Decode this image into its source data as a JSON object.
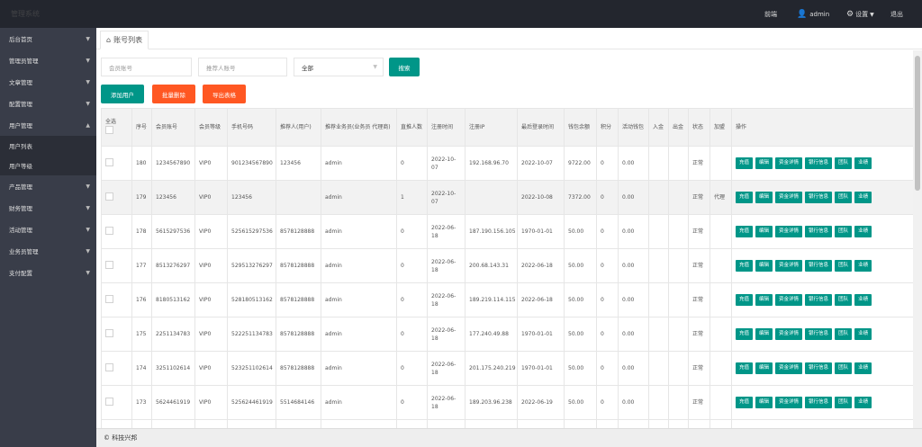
{
  "header": {
    "brand": "管理系统",
    "nav_home": "前端",
    "user": "admin",
    "settings": "设置",
    "logout": "退出"
  },
  "sidebar": {
    "items": [
      {
        "label": "后台首页"
      },
      {
        "label": "管理员管理"
      },
      {
        "label": "文章管理"
      },
      {
        "label": "配置管理"
      },
      {
        "label": "用户管理",
        "expanded": true,
        "children": [
          "用户列表",
          "用户等级"
        ]
      },
      {
        "label": "产品管理"
      },
      {
        "label": "财务管理"
      },
      {
        "label": "活动管理"
      },
      {
        "label": "业务员管理"
      },
      {
        "label": "支付配置"
      }
    ]
  },
  "tab": {
    "icon": "home-icon",
    "label": "账号列表"
  },
  "search": {
    "member_placeholder": "会员账号",
    "referrer_placeholder": "推荐人账号",
    "select_value": "全部",
    "search_label": "搜索"
  },
  "actions": {
    "add": "添加用户",
    "batch_delete": "批量删除",
    "export": "导出表格"
  },
  "table": {
    "headers": [
      "全选",
      "序号",
      "会员账号",
      "会员等级",
      "手机号码",
      "推荐人(用户)",
      "推荐业务员(业务员 代理商)",
      "直推人数",
      "注册时间",
      "注册IP",
      "最后登录时间",
      "钱包余额",
      "积分",
      "活动钱包",
      "入金",
      "出金",
      "状态",
      "加盟",
      "操作"
    ],
    "ops": [
      "充值",
      "编辑",
      "资金详情",
      "银行信息",
      "团队",
      "业绩"
    ],
    "rows": [
      [
        "180",
        "1234567890",
        "VIP0",
        "901234567890",
        "123456",
        "admin",
        "0",
        "2022-10-07",
        "192.168.96.70",
        "2022-10-07",
        "9722.00",
        "0",
        "0.00",
        "",
        "",
        "正常",
        ""
      ],
      [
        "179",
        "123456",
        "VIP0",
        "123456",
        "",
        "admin",
        "1",
        "2022-10-07",
        "",
        "2022-10-08",
        "7372.00",
        "0",
        "0.00",
        "",
        "",
        "正常",
        "代理"
      ],
      [
        "178",
        "5615297536",
        "VIP0",
        "525615297536",
        "8578128888",
        "admin",
        "0",
        "2022-06-18",
        "187.190.156.105",
        "1970-01-01",
        "50.00",
        "0",
        "0.00",
        "",
        "",
        "正常",
        ""
      ],
      [
        "177",
        "8513276297",
        "VIP0",
        "529513276297",
        "8578128888",
        "admin",
        "0",
        "2022-06-18",
        "200.68.143.31",
        "2022-06-18",
        "50.00",
        "0",
        "0.00",
        "",
        "",
        "正常",
        ""
      ],
      [
        "176",
        "8180513162",
        "VIP0",
        "528180513162",
        "8578128888",
        "admin",
        "0",
        "2022-06-18",
        "189.219.114.115",
        "2022-06-18",
        "50.00",
        "0",
        "0.00",
        "",
        "",
        "正常",
        ""
      ],
      [
        "175",
        "2251134783",
        "VIP0",
        "522251134783",
        "8578128888",
        "admin",
        "0",
        "2022-06-18",
        "177.240.49.88",
        "1970-01-01",
        "50.00",
        "0",
        "0.00",
        "",
        "",
        "正常",
        ""
      ],
      [
        "174",
        "3251102614",
        "VIP0",
        "523251102614",
        "8578128888",
        "admin",
        "0",
        "2022-06-18",
        "201.175.240.219",
        "1970-01-01",
        "50.00",
        "0",
        "0.00",
        "",
        "",
        "正常",
        ""
      ],
      [
        "173",
        "5624461919",
        "VIP0",
        "525624461919",
        "5514684146",
        "admin",
        "0",
        "2022-06-18",
        "189.203.96.238",
        "2022-06-19",
        "50.00",
        "0",
        "0.00",
        "",
        "",
        "正常",
        ""
      ],
      [
        "172",
        "8441321845",
        "VIP0",
        "528441321845",
        "13988139888",
        "admin",
        "0",
        "2022-06-18",
        "201.162.226.160",
        "2022-06-18",
        "50.00",
        "0",
        "0.00",
        "",
        "",
        "正常",
        ""
      ]
    ]
  },
  "footer": {
    "copyright": "© 科技兴邦"
  }
}
